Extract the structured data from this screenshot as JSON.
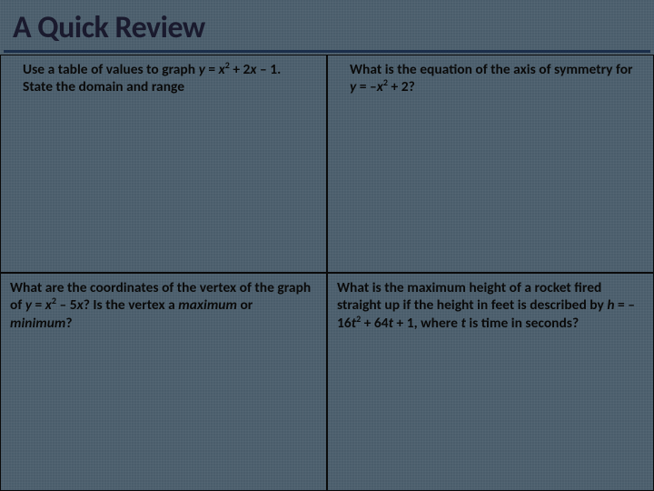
{
  "title": "A Quick Review",
  "cells": {
    "q1": {
      "line1_a": "Use a table of values to graph ",
      "eq1_y": "y",
      "eq1_mid": " = ",
      "eq1_x": "x",
      "eq1_sup": "2",
      "eq1_b": " + 2",
      "eq1_x2": "x",
      "eq1_c": " – 1. State the domain and range"
    },
    "q2": {
      "line1": "What is the equation of the axis of symmetry for",
      "eq_y": "y",
      "eq_mid": " = –",
      "eq_x": "x",
      "eq_sup": "2",
      "eq_tail": " + 2?"
    },
    "q3": {
      "line1": "What are the coordinates of the vertex of the graph of ",
      "eq_y": "y",
      "eq_mid": " = ",
      "eq_x": "x",
      "eq_sup": "2",
      "eq_b": " – 5",
      "eq_x2": "x",
      "eq_c": "? Is the vertex a ",
      "max": "maximum",
      "or": " or ",
      "min": "minimum",
      "qm": "?"
    },
    "q4": {
      "line1": "What is the maximum height of a rocket fired straight up if the height in feet is described by ",
      "eq_h": "h",
      "eq_mid": " = – 16",
      "eq_t": "t",
      "eq_sup": "2",
      "eq_b": " + 64",
      "eq_t2": "t",
      "eq_c": " + 1, where ",
      "eq_t3": "t",
      "eq_tail": " is time in seconds?"
    }
  },
  "colors": {
    "background": "#4a5d6b",
    "text": "#0a0a0a",
    "underline": "#1b2e4a",
    "border": "#0a0a0a"
  }
}
